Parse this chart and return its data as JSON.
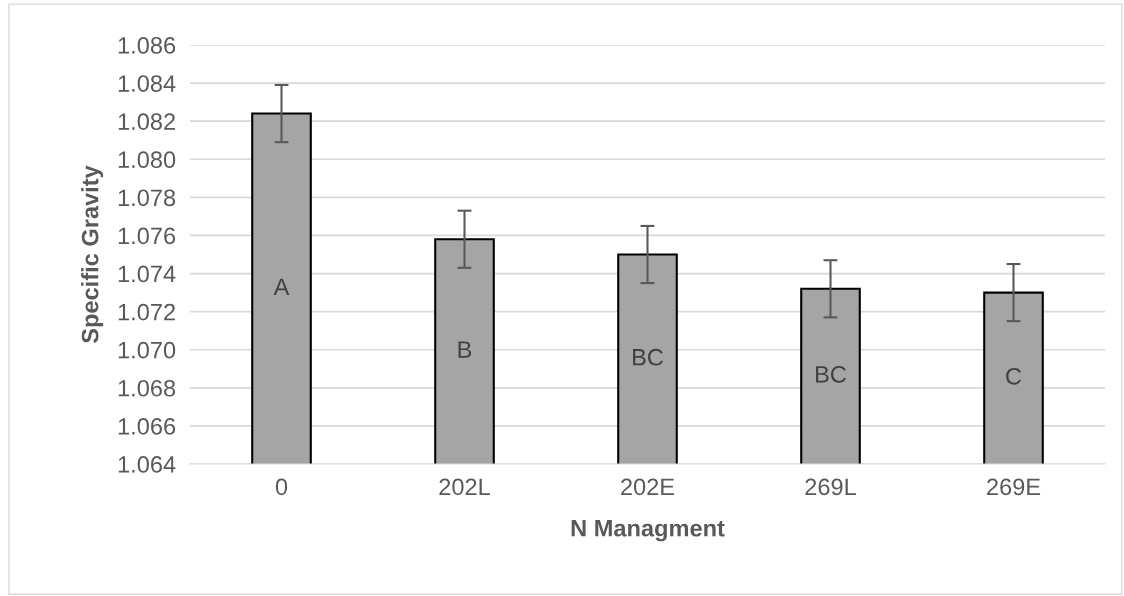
{
  "chart_data": {
    "type": "bar",
    "xlabel": "N Managment",
    "ylabel": "Specific Gravity",
    "categories": [
      "0",
      "202L",
      "202E",
      "269L",
      "269E"
    ],
    "values": [
      1.0824,
      1.0758,
      1.075,
      1.0732,
      1.073
    ],
    "errors": [
      0.0015,
      0.0015,
      0.0015,
      0.0015,
      0.0015
    ],
    "color": "#a5a5a5",
    "ylim": [
      1.064,
      1.086
    ],
    "yticks": [
      {
        "value": 1.064,
        "label": "1.064"
      },
      {
        "value": 1.066,
        "label": "1.066"
      },
      {
        "value": 1.068,
        "label": "1.068"
      },
      {
        "value": 1.07,
        "label": "1.070"
      },
      {
        "value": 1.072,
        "label": "1.072"
      },
      {
        "value": 1.074,
        "label": "1.074"
      },
      {
        "value": 1.076,
        "label": "1.076"
      },
      {
        "value": 1.078,
        "label": "1.078"
      },
      {
        "value": 1.08,
        "label": "1.080"
      },
      {
        "value": 1.082,
        "label": "1.082"
      },
      {
        "value": 1.084,
        "label": "1.084"
      },
      {
        "value": 1.086,
        "label": "1.086"
      }
    ],
    "grid": "y",
    "annotations": [
      "A",
      "B",
      "BC",
      "BC",
      "C"
    ]
  }
}
